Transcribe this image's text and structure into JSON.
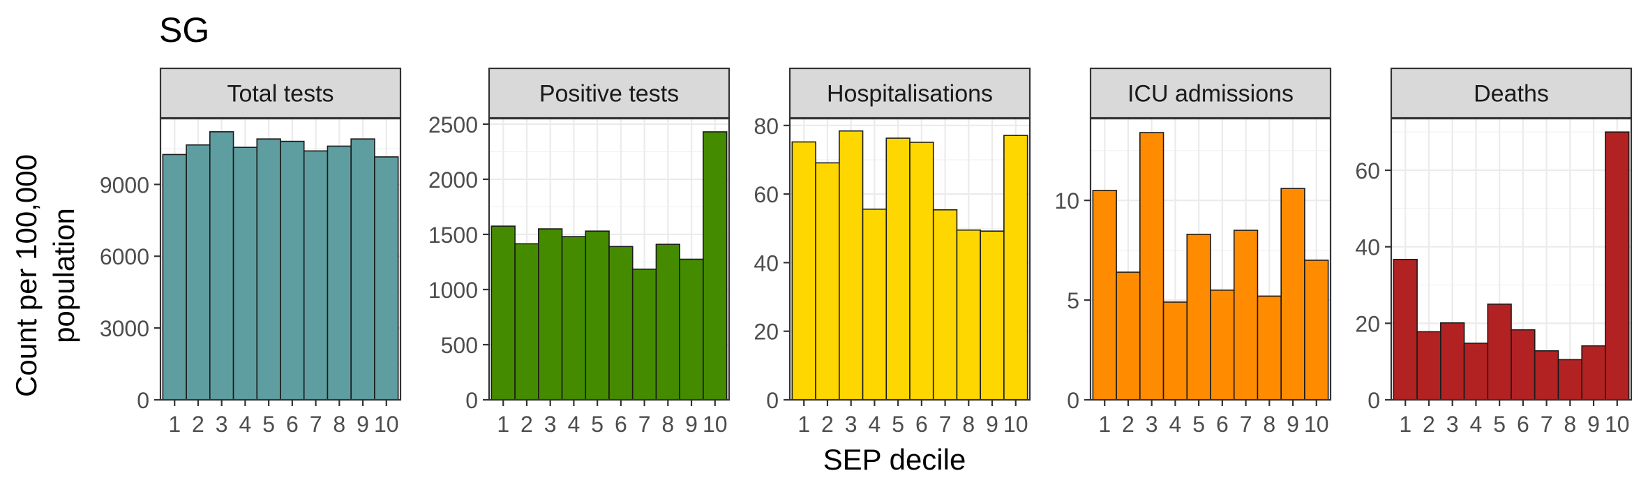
{
  "figure": {
    "title": "SG",
    "xlabel": "SEP decile",
    "ylabel_lines": [
      "Count per 100,000",
      "population"
    ]
  },
  "chart_data": [
    {
      "type": "bar",
      "title": "Total tests",
      "color": "#5f9ea0",
      "categories": [
        "1",
        "2",
        "3",
        "4",
        "5",
        "6",
        "7",
        "8",
        "9",
        "10"
      ],
      "values": [
        10250,
        10650,
        11200,
        10550,
        10900,
        10800,
        10400,
        10600,
        10900,
        10150
      ],
      "yticks": [
        0,
        3000,
        6000,
        9000
      ],
      "ylim": [
        0,
        11750
      ],
      "xlabel": "SEP decile",
      "ylabel": "Count per 100,000 population",
      "grid": true
    },
    {
      "type": "bar",
      "title": "Positive tests",
      "color": "#458b00",
      "categories": [
        "1",
        "2",
        "3",
        "4",
        "5",
        "6",
        "7",
        "8",
        "9",
        "10"
      ],
      "values": [
        1575,
        1415,
        1550,
        1480,
        1530,
        1390,
        1185,
        1410,
        1275,
        2430
      ],
      "yticks": [
        0,
        500,
        1000,
        1500,
        2000,
        2500
      ],
      "ylim": [
        0,
        2550
      ],
      "xlabel": "SEP decile",
      "ylabel": "Count per 100,000 population",
      "grid": true
    },
    {
      "type": "bar",
      "title": "Hospitalisations",
      "color": "#ffd700",
      "categories": [
        "1",
        "2",
        "3",
        "4",
        "5",
        "6",
        "7",
        "8",
        "9",
        "10"
      ],
      "values": [
        75.2,
        69.1,
        78.4,
        55.6,
        76.3,
        75.1,
        55.4,
        49.5,
        49.2,
        77.1
      ],
      "yticks": [
        0,
        20,
        40,
        60,
        80
      ],
      "ylim": [
        0,
        82
      ],
      "xlabel": "SEP decile",
      "ylabel": "Count per 100,000 population",
      "grid": true
    },
    {
      "type": "bar",
      "title": "ICU admissions",
      "color": "#ff8c00",
      "categories": [
        "1",
        "2",
        "3",
        "4",
        "5",
        "6",
        "7",
        "8",
        "9",
        "10"
      ],
      "values": [
        10.5,
        6.4,
        13.4,
        4.9,
        8.3,
        5.5,
        8.5,
        5.2,
        10.6,
        7.0
      ],
      "yticks": [
        0,
        5,
        10
      ],
      "ylim": [
        0,
        14.1
      ],
      "xlabel": "SEP decile",
      "ylabel": "Count per 100,000 population",
      "grid": true
    },
    {
      "type": "bar",
      "title": "Deaths",
      "color": "#b22222",
      "categories": [
        "1",
        "2",
        "3",
        "4",
        "5",
        "6",
        "7",
        "8",
        "9",
        "10"
      ],
      "values": [
        36.7,
        17.8,
        20.1,
        14.8,
        25.0,
        18.3,
        12.8,
        10.5,
        14.1,
        70.0
      ],
      "yticks": [
        0,
        20,
        40,
        60
      ],
      "ylim": [
        0,
        73.5
      ],
      "xlabel": "SEP decile",
      "ylabel": "Count per 100,000 population",
      "grid": true
    }
  ]
}
